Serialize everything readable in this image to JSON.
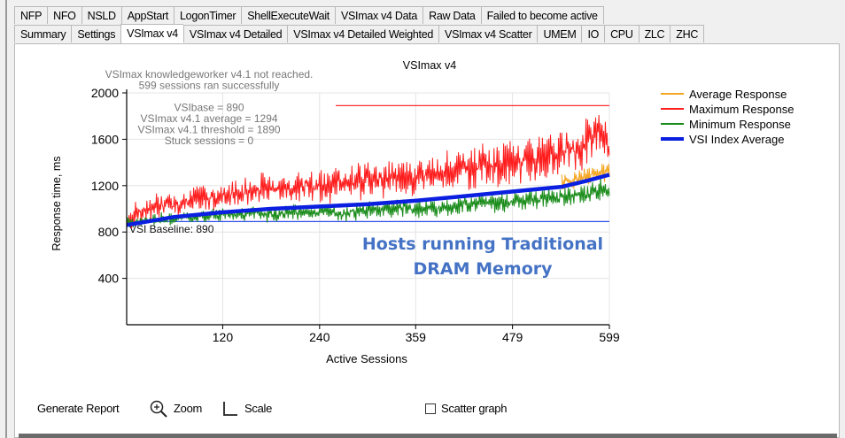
{
  "tabs_row1": [
    "NFP",
    "NFO",
    "NSLD",
    "AppStart",
    "LogonTimer",
    "ShellExecuteWait",
    "VSImax v4 Data",
    "Raw Data",
    "Failed to become active"
  ],
  "tabs_row2": [
    "Summary",
    "Settings",
    "VSImax v4",
    "VSImax v4 Detailed",
    "VSImax v4 Detailed Weighted",
    "VSImax v4 Scatter",
    "UMEM",
    "IO",
    "CPU",
    "ZLC",
    "ZHC"
  ],
  "active_tab": "VSImax v4",
  "chart_data": {
    "type": "line",
    "title": "VSImax v4",
    "xlabel": "Active Sessions",
    "ylabel": "Response time, ms",
    "xlim": [
      1,
      599
    ],
    "ylim": [
      0,
      2000
    ],
    "x_ticks": [
      "120",
      "240",
      "359",
      "479",
      "599"
    ],
    "x_tick_values": [
      120,
      240,
      359,
      479,
      599
    ],
    "y_ticks": [
      "400",
      "800",
      "1200",
      "1600",
      "2000"
    ],
    "y_tick_values": [
      400,
      800,
      1200,
      1600,
      2000
    ],
    "annotation_lines": [
      "VSImax knowledgeworker v4.1 not reached.",
      "599 sessions ran successfully",
      "",
      "VSIbase = 890",
      "VSImax v4.1 average = 1294",
      "VSImax v4.1 threshold = 1890",
      "Stuck sessions = 0"
    ],
    "baseline": {
      "label": "VSI Baseline: 890",
      "value": 890
    },
    "threshold": {
      "value": 1890,
      "from_x": 260
    },
    "legend": [
      "Average Response",
      "Maximum Response",
      "Minimum Response",
      "VSI Index Average"
    ],
    "legend_position": "right",
    "colors": {
      "average": "#f5a623",
      "maximum": "#ff1e1e",
      "minimum": "#1a8c1a",
      "vsi_index": "#0a1fe0",
      "baseline": "#3050e8",
      "threshold": "#ff3030"
    },
    "series": [
      {
        "name": "Maximum Response",
        "x": [
          1,
          30,
          60,
          90,
          120,
          150,
          180,
          210,
          240,
          270,
          300,
          330,
          360,
          390,
          420,
          450,
          480,
          510,
          540,
          570,
          590,
          599
        ],
        "values": [
          900,
          1000,
          1050,
          1080,
          1120,
          1150,
          1180,
          1180,
          1200,
          1230,
          1260,
          1270,
          1290,
          1310,
          1340,
          1380,
          1400,
          1440,
          1480,
          1560,
          1700,
          1500
        ]
      },
      {
        "name": "Minimum Response",
        "x": [
          1,
          30,
          60,
          90,
          120,
          150,
          180,
          210,
          240,
          270,
          300,
          330,
          360,
          390,
          420,
          450,
          480,
          510,
          540,
          570,
          590,
          599
        ],
        "values": [
          880,
          900,
          920,
          930,
          950,
          960,
          950,
          970,
          980,
          960,
          990,
          1000,
          1010,
          1000,
          1040,
          1050,
          1060,
          1080,
          1100,
          1120,
          1180,
          1150
        ]
      },
      {
        "name": "VSI Index Average",
        "x": [
          1,
          60,
          120,
          180,
          240,
          300,
          360,
          420,
          480,
          540,
          570,
          599
        ],
        "values": [
          860,
          930,
          970,
          1000,
          1020,
          1040,
          1070,
          1110,
          1150,
          1190,
          1240,
          1294
        ]
      },
      {
        "name": "Average Response",
        "x": [
          540,
          560,
          580,
          599
        ],
        "values": [
          1230,
          1260,
          1300,
          1330
        ]
      }
    ]
  },
  "overlay_text": [
    "Hosts running Traditional",
    "DRAM Memory"
  ],
  "controls": {
    "generate_report": "Generate Report",
    "zoom": "Zoom",
    "scale": "Scale",
    "scatter_graph": "Scatter graph"
  }
}
